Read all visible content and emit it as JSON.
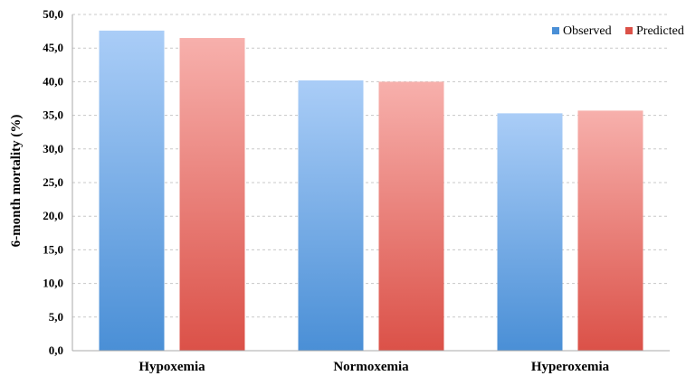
{
  "chart_data": {
    "type": "bar",
    "categories": [
      "Hypoxemia",
      "Normoxemia",
      "Hyperoxemia"
    ],
    "series": [
      {
        "name": "Observed",
        "values": [
          47.6,
          40.2,
          35.3
        ],
        "color_top": "#aacdf7",
        "color_bottom": "#4a8fd6"
      },
      {
        "name": "Predicted",
        "values": [
          46.5,
          40.0,
          35.7
        ],
        "color_top": "#f7b0ac",
        "color_bottom": "#db5148"
      }
    ],
    "title": "",
    "xlabel": "",
    "ylabel": "6-month mortality (%)",
    "ylim": [
      0,
      50
    ],
    "yticks": [
      "0,0",
      "5,0",
      "10,0",
      "15,0",
      "20,0",
      "25,0",
      "30,0",
      "35,0",
      "40,0",
      "45,0",
      "50,0"
    ],
    "grid": true,
    "legend": "top-right"
  }
}
